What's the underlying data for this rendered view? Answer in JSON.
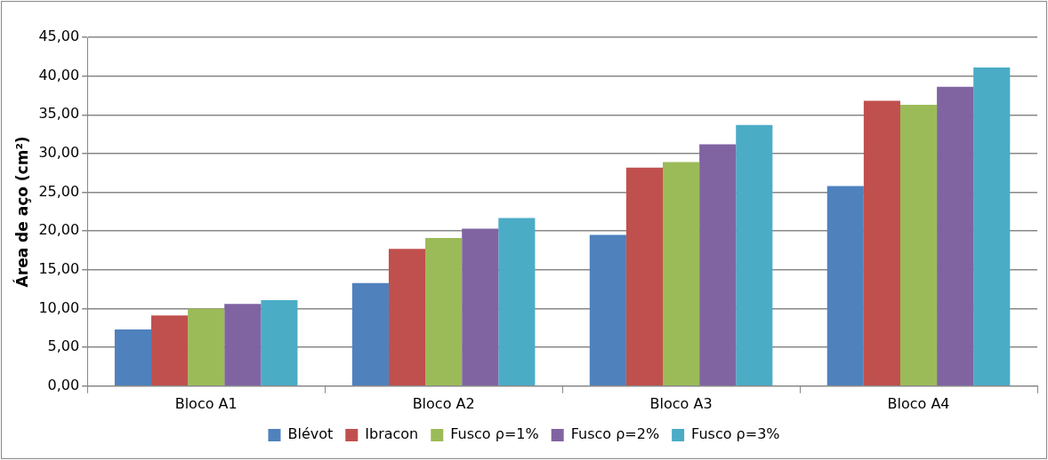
{
  "chart_data": {
    "type": "bar",
    "ylabel": "Área de aço (cm²)",
    "categories": [
      "Bloco A1",
      "Bloco A2",
      "Bloco A3",
      "Bloco A4"
    ],
    "series": [
      {
        "name": "Blévot",
        "color": "#4f81bd",
        "values": [
          7.3,
          13.3,
          19.5,
          25.8
        ]
      },
      {
        "name": "Ibracon",
        "color": "#c0504d",
        "values": [
          9.1,
          17.7,
          28.2,
          36.8
        ]
      },
      {
        "name": "Fusco ρ=1%",
        "color": "#9bbb59",
        "values": [
          10.0,
          19.1,
          28.9,
          36.3
        ]
      },
      {
        "name": "Fusco ρ=2%",
        "color": "#8064a2",
        "values": [
          10.6,
          20.3,
          31.2,
          38.6
        ]
      },
      {
        "name": "Fusco ρ=3%",
        "color": "#4bacc6",
        "values": [
          11.1,
          21.7,
          33.7,
          41.1
        ]
      }
    ],
    "ylim": [
      0,
      45
    ],
    "yticks": [
      {
        "value": 0,
        "label": "0,00"
      },
      {
        "value": 5,
        "label": "5,00"
      },
      {
        "value": 10,
        "label": "10,00"
      },
      {
        "value": 15,
        "label": "15,00"
      },
      {
        "value": 20,
        "label": "20,00"
      },
      {
        "value": 25,
        "label": "25,00"
      },
      {
        "value": 30,
        "label": "30,00"
      },
      {
        "value": 35,
        "label": "35,00"
      },
      {
        "value": 40,
        "label": "40,00"
      },
      {
        "value": 45,
        "label": "45,00"
      }
    ],
    "grid": "y",
    "legend": "bottom"
  }
}
